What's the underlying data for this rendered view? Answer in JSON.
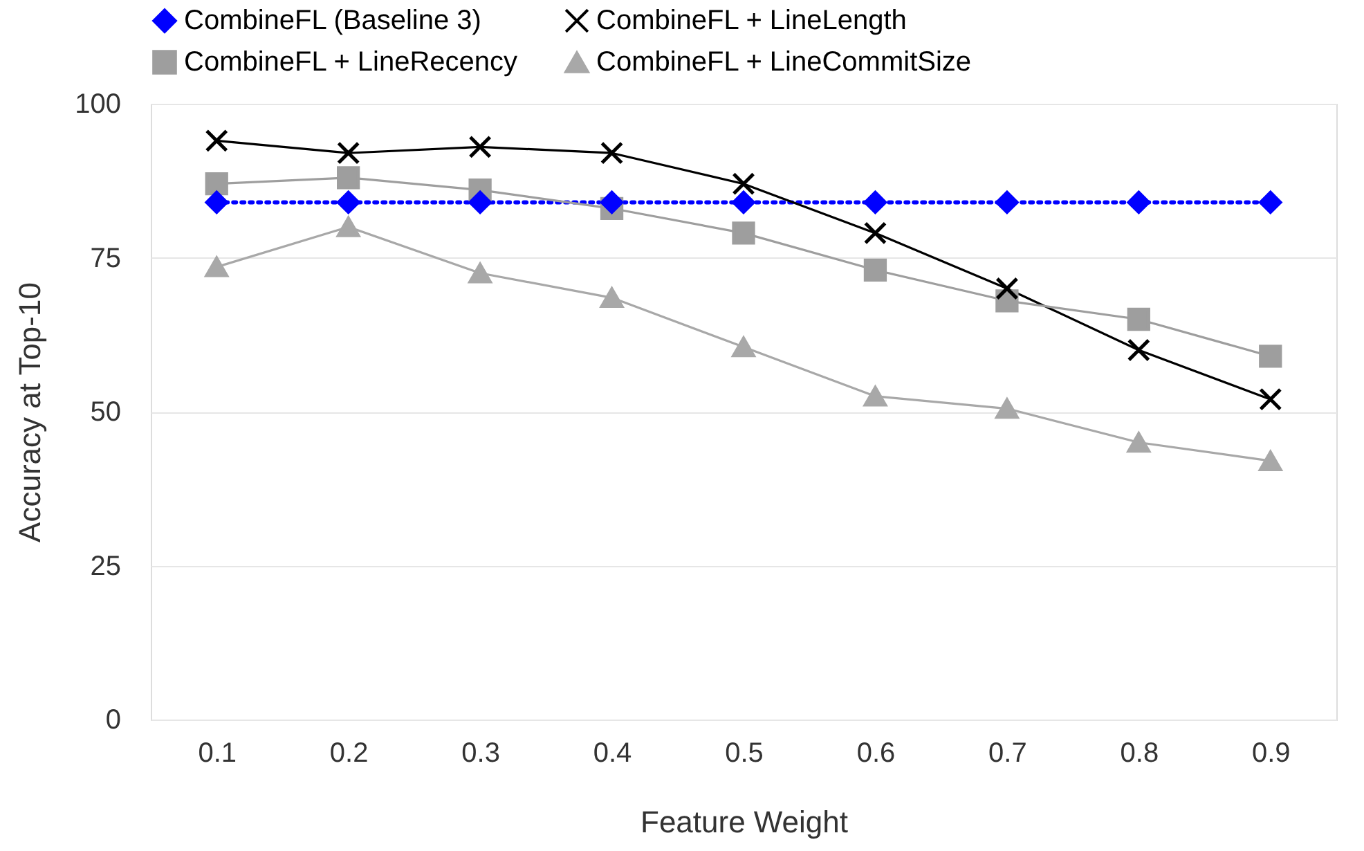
{
  "chart_data": {
    "type": "line",
    "xlabel": "Feature Weight",
    "ylabel": "Accuracy at Top-10",
    "categories": [
      "0.1",
      "0.2",
      "0.3",
      "0.4",
      "0.5",
      "0.6",
      "0.7",
      "0.8",
      "0.9"
    ],
    "series": [
      {
        "name": "CombineFL (Baseline 3)",
        "color": "#0000ff",
        "marker": "diamond",
        "line_style": "dotted",
        "values": [
          84,
          84,
          84,
          84,
          84,
          84,
          84,
          84,
          84
        ]
      },
      {
        "name": "CombineFL + LineLength",
        "color": "#000000",
        "marker": "cross",
        "line_style": "solid",
        "values": [
          94,
          92,
          93,
          92,
          87,
          79,
          70,
          60,
          52
        ]
      },
      {
        "name": "CombineFL + LineRecency",
        "color": "#9e9e9e",
        "marker": "square",
        "line_style": "solid",
        "values": [
          87,
          88,
          86,
          83,
          79,
          73,
          68,
          65,
          59
        ]
      },
      {
        "name": "CombineFL + LineCommitSize",
        "color": "#a8a8a8",
        "marker": "triangle",
        "line_style": "solid",
        "values": [
          73.5,
          80,
          72.5,
          68.5,
          60.5,
          52.5,
          50.5,
          45,
          42
        ]
      }
    ],
    "ylim": [
      0,
      100
    ],
    "yticks": [
      0,
      25,
      50,
      75,
      100
    ],
    "grid": "y",
    "legend": "top"
  }
}
